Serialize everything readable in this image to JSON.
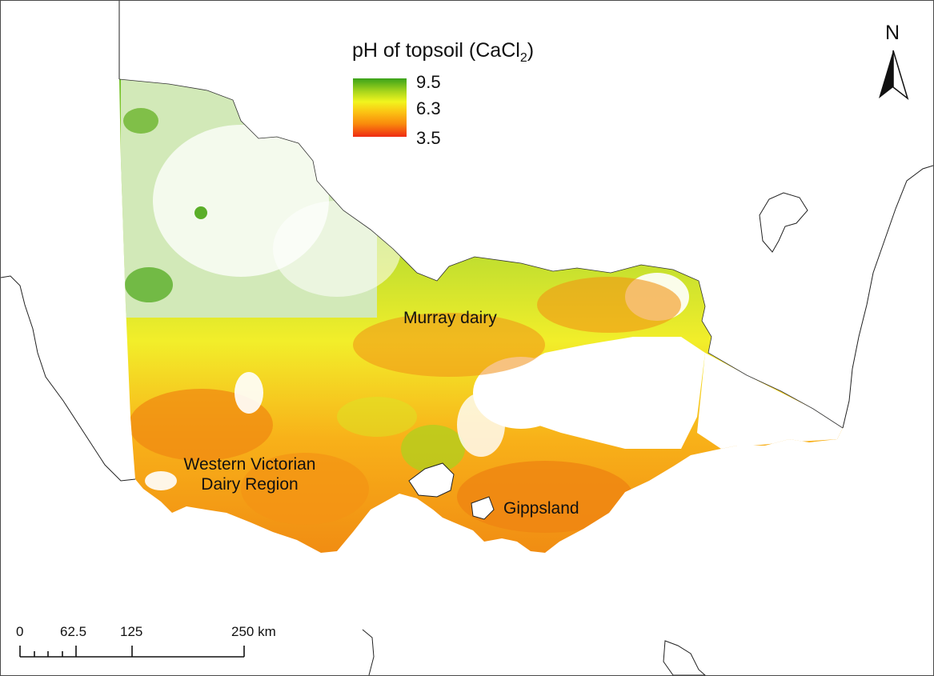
{
  "legend": {
    "title_main": "pH of topsoil (CaCl",
    "title_sub": "2",
    "title_close": ")",
    "max_label": "9.5",
    "mid_label": "6.3",
    "min_label": "3.5",
    "colors": [
      "#3aa21a",
      "#a7d51c",
      "#f1f51e",
      "#fbc213",
      "#f98a0c",
      "#ef2a12"
    ]
  },
  "north_arrow": {
    "label": "N"
  },
  "regions": {
    "murray": "Murray dairy",
    "western_line1": "Western Victorian",
    "western_line2": "Dairy Region",
    "gippsland": "Gippsland"
  },
  "scale_bar": {
    "labels": [
      "0",
      "62.5",
      "125",
      "250 km"
    ]
  }
}
